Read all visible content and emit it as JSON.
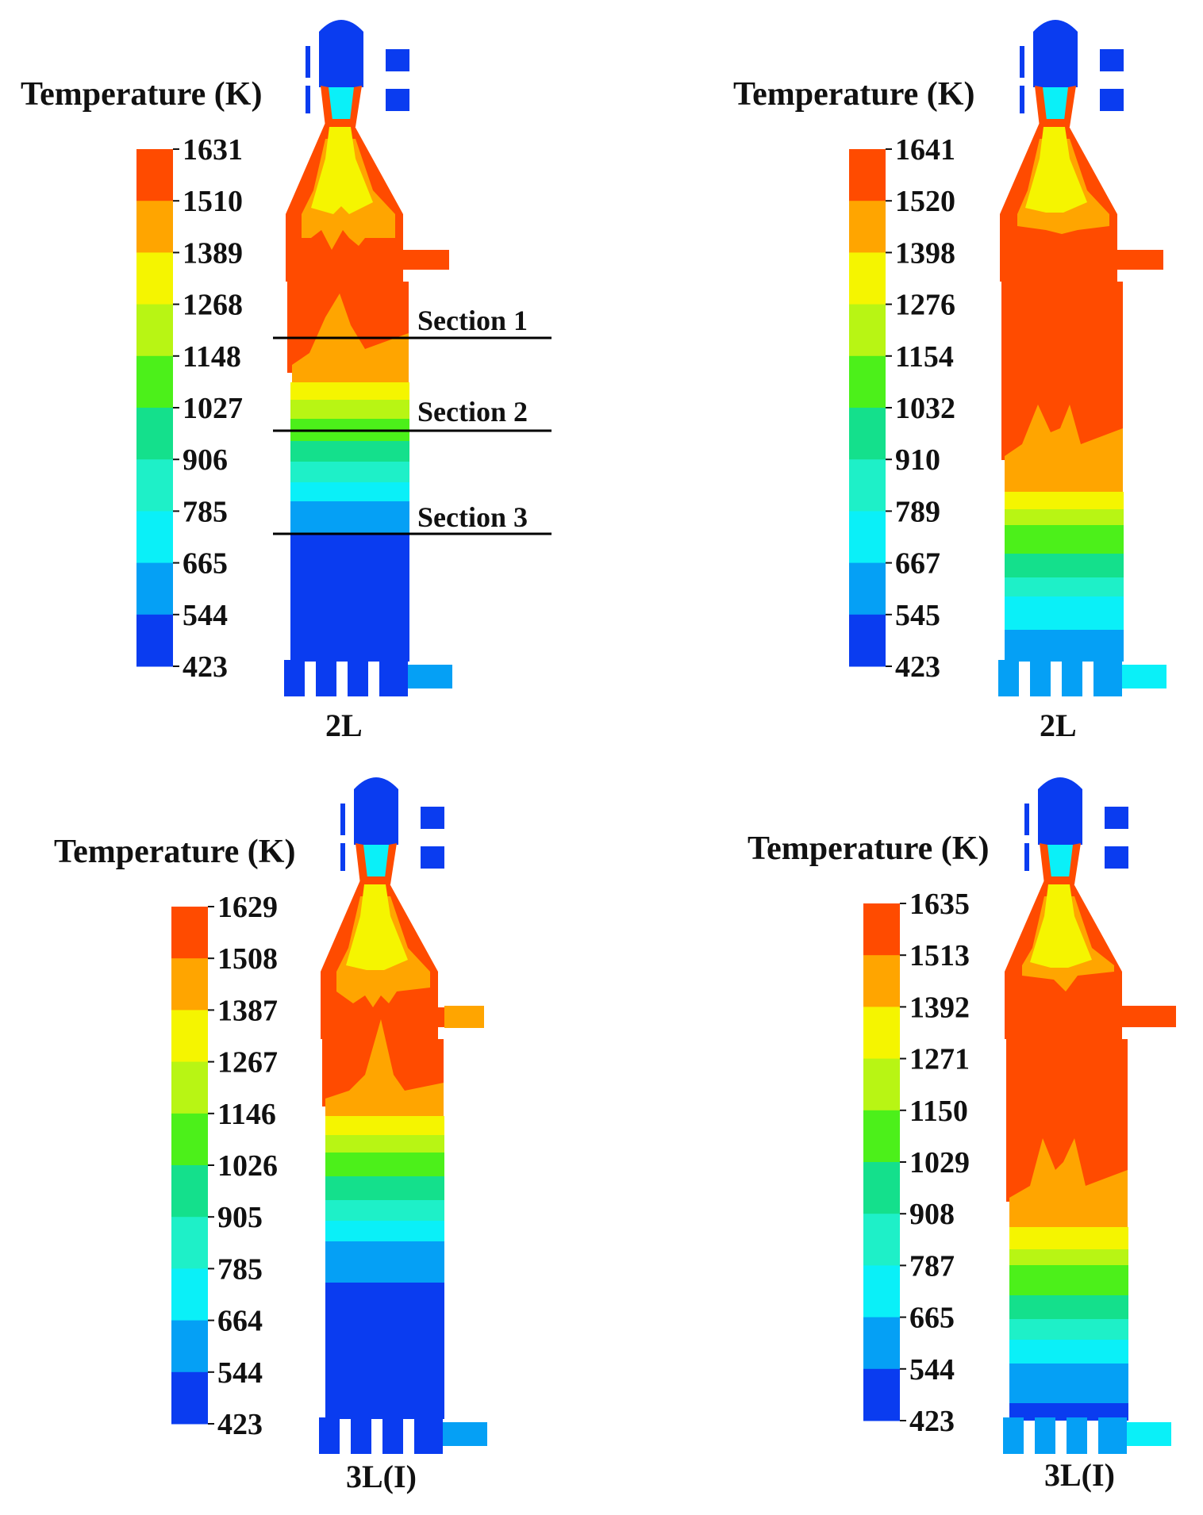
{
  "colormap": [
    "#0a3cf0",
    "#05a0f5",
    "#0af0f8",
    "#1ef0c8",
    "#14e08c",
    "#4cf01a",
    "#b8f514",
    "#f5f500",
    "#ffa500",
    "#ff4b00"
  ],
  "colors": {
    "red": "#ff4b00",
    "orange": "#ffa500",
    "yellow": "#f5f500",
    "lime": "#b8f514",
    "green": "#4cf01a",
    "sea": "#14e08c",
    "teal": "#1ef0c8",
    "cyan": "#0af0f8",
    "sky": "#05a0f5",
    "blue": "#0a3cf0"
  },
  "panels": [
    {
      "id": "tl",
      "colorbar_title": "Temperature (K)",
      "ticks": [
        "1631",
        "1510",
        "1389",
        "1268",
        "1148",
        "1027",
        "906",
        "785",
        "665",
        "544",
        "423"
      ],
      "case_label": "2L",
      "sections": [
        "Section 1",
        "Section 2",
        "Section 3"
      ]
    },
    {
      "id": "tr",
      "colorbar_title": "Temperature (K)",
      "ticks": [
        "1641",
        "1520",
        "1398",
        "1276",
        "1154",
        "1032",
        "910",
        "789",
        "667",
        "545",
        "423"
      ],
      "case_label": "2L",
      "sections": []
    },
    {
      "id": "bl",
      "colorbar_title": "Temperature (K)",
      "ticks": [
        "1629",
        "1508",
        "1387",
        "1267",
        "1146",
        "1026",
        "905",
        "785",
        "664",
        "544",
        "423"
      ],
      "case_label": "3L(I)",
      "sections": []
    },
    {
      "id": "br",
      "colorbar_title": "Temperature (K)",
      "ticks": [
        "1635",
        "1513",
        "1392",
        "1271",
        "1150",
        "1029",
        "908",
        "787",
        "665",
        "544",
        "423"
      ],
      "case_label": "3L(I)",
      "sections": []
    }
  ]
}
